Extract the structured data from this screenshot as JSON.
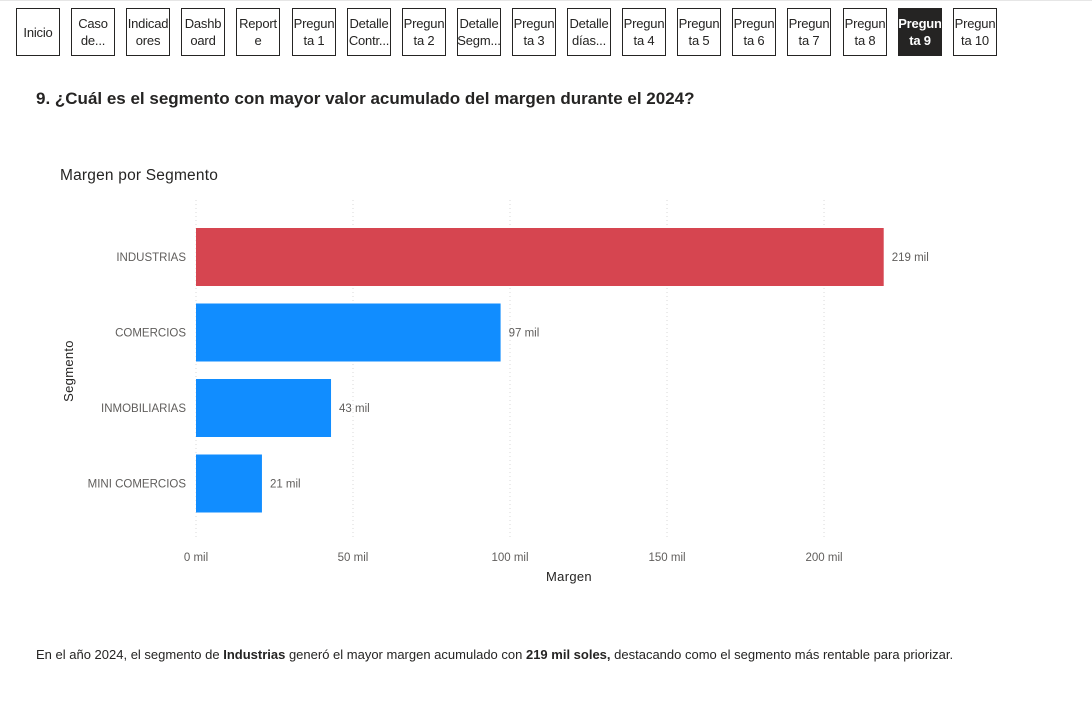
{
  "nav": {
    "buttons": [
      {
        "label": "Inicio",
        "active": false
      },
      {
        "label": "Caso\nde...",
        "active": false
      },
      {
        "label": "Indicad\nores",
        "active": false
      },
      {
        "label": "Dashb\noard",
        "active": false
      },
      {
        "label": "Report\ne",
        "active": false
      },
      {
        "label": "Pregun\nta 1",
        "active": false
      },
      {
        "label": "Detalle\nContr...",
        "active": false
      },
      {
        "label": "Pregun\nta 2",
        "active": false
      },
      {
        "label": "Detalle\nSegm...",
        "active": false
      },
      {
        "label": "Pregun\nta 3",
        "active": false
      },
      {
        "label": "Detalle\ndías...",
        "active": false
      },
      {
        "label": "Pregun\nta 4",
        "active": false
      },
      {
        "label": "Pregun\nta 5",
        "active": false
      },
      {
        "label": "Pregun\nta 6",
        "active": false
      },
      {
        "label": "Pregun\nta 7",
        "active": false
      },
      {
        "label": "Pregun\nta 8",
        "active": false
      },
      {
        "label": "Pregun\nta 9",
        "active": true
      },
      {
        "label": "Pregun\nta 10",
        "active": false
      }
    ]
  },
  "question": "9. ¿Cuál es el segmento con mayor valor acumulado del margen durante el 2024?",
  "chart_data": {
    "type": "bar",
    "orientation": "horizontal",
    "title": "Margen por Segmento",
    "xlabel": "Margen",
    "ylabel": "Segmento",
    "categories": [
      "INDUSTRIAS",
      "COMERCIOS",
      "INMOBILIARIAS",
      "MINI COMERCIOS"
    ],
    "values": [
      219000,
      97000,
      43000,
      21000
    ],
    "data_labels": [
      "219 mil",
      "97 mil",
      "43 mil",
      "21 mil"
    ],
    "colors": [
      "#D64550",
      "#118DFF",
      "#118DFF",
      "#118DFF"
    ],
    "xlim": [
      0,
      220000
    ],
    "x_ticks": [
      0,
      50000,
      100000,
      150000,
      200000
    ],
    "x_tick_labels": [
      "0 mil",
      "50 mil",
      "100 mil",
      "150 mil",
      "200 mil"
    ],
    "grid": true
  },
  "summary": {
    "part1": "En el año 2024, el segmento de ",
    "bold1": "Industrias",
    "part2": " generó el mayor margen acumulado con ",
    "bold2": "219 mil soles,",
    "part3": " destacando como el segmento más rentable para priorizar."
  },
  "colors": {
    "text": "#252423",
    "highlight": "#D64550",
    "bar": "#118DFF",
    "active_button": "#252423"
  }
}
